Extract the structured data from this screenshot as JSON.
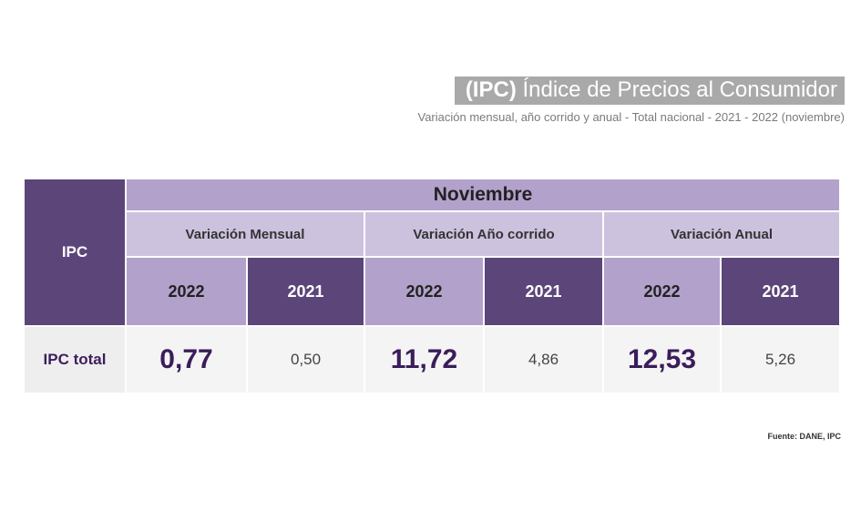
{
  "header": {
    "title_abbr": "(IPC)",
    "title_rest": "Índice de Precios al Consumidor",
    "subtitle": "Variación mensual, año corrido y anual - Total nacional  - 2021 - 2022 (noviembre)"
  },
  "chart_data": {
    "type": "table",
    "row_header": "IPC",
    "month": "Noviembre",
    "groups": [
      "Variación Mensual",
      "Variación Año corrido",
      "Variación Anual"
    ],
    "years": [
      "2022",
      "2021"
    ],
    "rows": [
      {
        "label": "IPC total",
        "values": [
          "0,77",
          "0,50",
          "11,72",
          "4,86",
          "12,53",
          "5,26"
        ]
      }
    ]
  },
  "footer": {
    "source": "Fuente: DANE, IPC"
  }
}
